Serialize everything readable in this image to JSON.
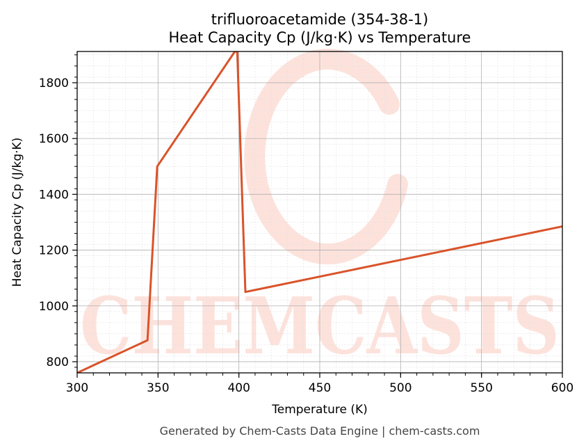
{
  "chart_data": {
    "type": "line",
    "title": "trifluoroacetamide (354-38-1)",
    "subtitle": "Heat Capacity Cp (J/kg·K) vs Temperature",
    "xlabel": "Temperature (K)",
    "ylabel": "Heat Capacity Cp (J/kg·K)",
    "xlim": [
      300,
      600
    ],
    "ylim": [
      760,
      1912
    ],
    "xticks": [
      300,
      350,
      400,
      450,
      500,
      550,
      600
    ],
    "yticks": [
      800,
      1000,
      1200,
      1400,
      1600,
      1800
    ],
    "grid": true,
    "series": [
      {
        "x": [
          300,
          343.5,
          349.5,
          397.5,
          399,
          404,
          600
        ],
        "y": [
          760,
          877,
          1500,
          1912,
          1912,
          1050,
          1285
        ]
      }
    ]
  },
  "watermark": "CHEMCASTS",
  "footer": "Generated by Chem-Casts Data Engine | chem-casts.com",
  "colors": {
    "line": "#d9532a",
    "watermark": "#fde2dc",
    "grid_major": "#b0b0b0",
    "grid_minor": "#e0e0e0"
  }
}
